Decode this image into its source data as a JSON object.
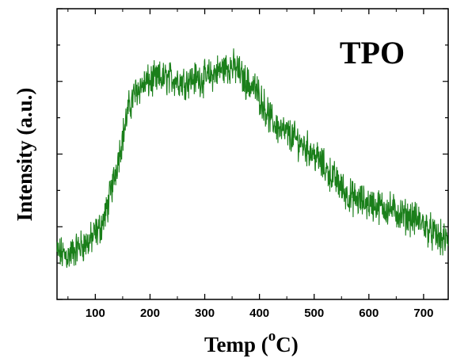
{
  "chart_data": {
    "type": "line",
    "title": "",
    "annotation": "TPO",
    "xlabel_main": "Temp (",
    "xlabel_sup": "o",
    "xlabel_end": "C)",
    "ylabel": "Intensity (a.u.)",
    "xlim": [
      30,
      745
    ],
    "ylim": [
      0,
      1
    ],
    "x_ticks": [
      100,
      200,
      300,
      400,
      500,
      600,
      700
    ],
    "y_tick_labels_shown": false,
    "grid": false,
    "legend": "none",
    "series": [
      {
        "color": "#1a7f1a",
        "noise": 0.09,
        "x": [
          30,
          50,
          70,
          90,
          110,
          120,
          130,
          140,
          150,
          160,
          170,
          180,
          200,
          220,
          240,
          260,
          280,
          300,
          320,
          340,
          350,
          360,
          370,
          380,
          390,
          400,
          410,
          420,
          440,
          460,
          480,
          500,
          520,
          540,
          560,
          580,
          600,
          620,
          640,
          660,
          680,
          700,
          720,
          740,
          745
        ],
        "y": [
          0.16,
          0.15,
          0.18,
          0.2,
          0.25,
          0.3,
          0.38,
          0.47,
          0.56,
          0.65,
          0.7,
          0.73,
          0.75,
          0.76,
          0.76,
          0.75,
          0.76,
          0.76,
          0.78,
          0.8,
          0.8,
          0.79,
          0.76,
          0.74,
          0.73,
          0.7,
          0.66,
          0.62,
          0.58,
          0.56,
          0.53,
          0.5,
          0.45,
          0.41,
          0.36,
          0.34,
          0.33,
          0.32,
          0.31,
          0.29,
          0.28,
          0.26,
          0.22,
          0.2,
          0.21
        ]
      }
    ]
  }
}
